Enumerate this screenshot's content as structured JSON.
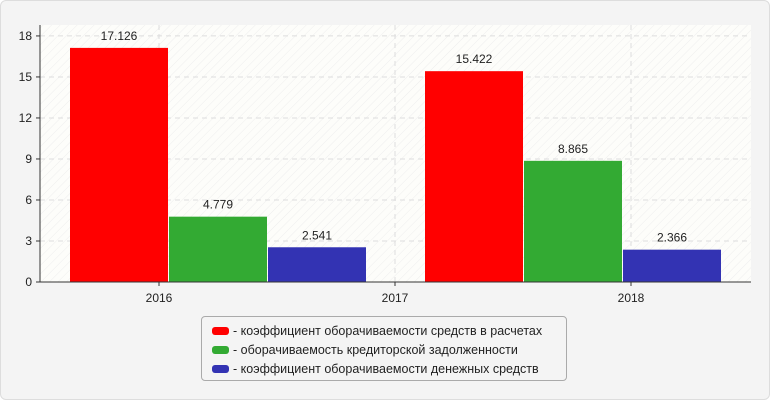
{
  "chart_data": {
    "type": "bar",
    "categories": [
      "2016",
      "2017",
      "2018"
    ],
    "ylim": [
      0,
      18.8
    ],
    "yticks": [
      0,
      3,
      6,
      9,
      12,
      15,
      18
    ],
    "grid": true,
    "legend_position": "bottom",
    "series": [
      {
        "name": "- коэффициент оборачиваемости средств в расчетах",
        "color": "#ff0000",
        "values": [
          17.126,
          null,
          15.422
        ],
        "labels": [
          "17.126",
          "",
          "15.422"
        ]
      },
      {
        "name": "- оборачиваемость кредиторской задолженности",
        "color": "#33aa33",
        "values": [
          4.779,
          null,
          8.865
        ],
        "labels": [
          "4.779",
          "",
          "8.865"
        ]
      },
      {
        "name": "- коэффициент оборачиваемости денежных средств",
        "color": "#3333b3",
        "values": [
          2.541,
          null,
          2.366
        ],
        "labels": [
          "2.541",
          "",
          "2.366"
        ]
      }
    ]
  }
}
